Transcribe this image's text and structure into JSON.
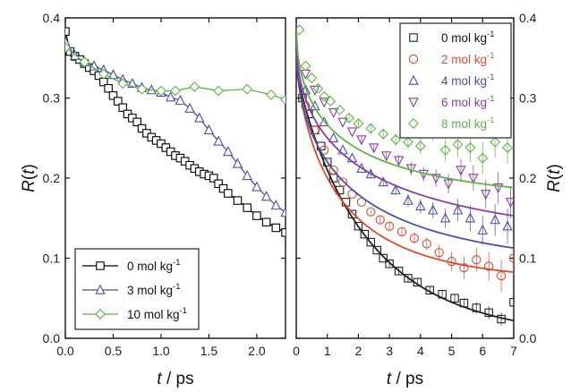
{
  "chart_data": [
    {
      "type": "line",
      "panel": "left",
      "xlabel_italic": "t",
      "xlabel_unit": " / ps",
      "ylabel_italic": "R",
      "ylabel_arg": "(t)",
      "xlim": [
        0,
        2.3
      ],
      "ylim": [
        0,
        0.4
      ],
      "xticks": [
        "0.0",
        "0.5",
        "1.0",
        "1.5",
        "2.0"
      ],
      "xtick_values": [
        0,
        0.5,
        1.0,
        1.5,
        2.0
      ],
      "yticks": [
        "0.0",
        "0.1",
        "0.2",
        "0.3",
        "0.4"
      ],
      "ytick_values": [
        0,
        0.1,
        0.2,
        0.3,
        0.4
      ],
      "legend_position": "bottom-left",
      "series": [
        {
          "name": "0 mol kg",
          "name_sup": "-1",
          "color": "#000000",
          "marker": "square",
          "x": [
            0.0,
            0.05,
            0.1,
            0.15,
            0.2,
            0.25,
            0.3,
            0.35,
            0.4,
            0.45,
            0.5,
            0.55,
            0.6,
            0.65,
            0.7,
            0.75,
            0.8,
            0.85,
            0.9,
            0.95,
            1.0,
            1.05,
            1.1,
            1.15,
            1.2,
            1.25,
            1.3,
            1.35,
            1.4,
            1.45,
            1.5,
            1.55,
            1.6,
            1.65,
            1.7,
            1.8,
            1.9,
            2.0,
            2.1,
            2.2,
            2.3
          ],
          "y": [
            0.383,
            0.358,
            0.352,
            0.348,
            0.343,
            0.338,
            0.334,
            0.328,
            0.32,
            0.312,
            0.303,
            0.296,
            0.288,
            0.28,
            0.275,
            0.27,
            0.262,
            0.256,
            0.251,
            0.247,
            0.243,
            0.238,
            0.233,
            0.228,
            0.225,
            0.221,
            0.216,
            0.212,
            0.208,
            0.205,
            0.203,
            0.2,
            0.193,
            0.187,
            0.181,
            0.172,
            0.163,
            0.153,
            0.145,
            0.138,
            0.132
          ]
        },
        {
          "name": "3 mol kg",
          "name_sup": "-1",
          "color": "#4a4fa8",
          "marker": "triangle-up",
          "x": [
            0.0,
            0.1,
            0.2,
            0.3,
            0.4,
            0.5,
            0.6,
            0.7,
            0.8,
            0.9,
            1.0,
            1.1,
            1.2,
            1.3,
            1.4,
            1.5,
            1.6,
            1.7,
            1.8,
            1.9,
            2.0,
            2.1,
            2.2,
            2.3
          ],
          "y": [
            0.37,
            0.353,
            0.345,
            0.34,
            0.335,
            0.329,
            0.323,
            0.318,
            0.313,
            0.31,
            0.307,
            0.301,
            0.297,
            0.287,
            0.275,
            0.26,
            0.246,
            0.233,
            0.218,
            0.203,
            0.189,
            0.177,
            0.166,
            0.157
          ]
        },
        {
          "name": "10 mol kg",
          "name_sup": "-1",
          "color": "#5db543",
          "marker": "diamond",
          "x": [
            0.0,
            0.2,
            0.4,
            0.6,
            0.8,
            1.0,
            1.15,
            1.35,
            1.6,
            1.9,
            2.15,
            2.3
          ],
          "y": [
            0.363,
            0.345,
            0.33,
            0.318,
            0.311,
            0.309,
            0.309,
            0.314,
            0.309,
            0.311,
            0.304,
            0.298
          ]
        }
      ]
    },
    {
      "type": "scatter",
      "panel": "right",
      "xlabel_italic": "t",
      "xlabel_unit": " / ps",
      "ylabel_italic": "R",
      "ylabel_arg": "(t)",
      "xlim": [
        0,
        7
      ],
      "ylim": [
        0,
        0.4
      ],
      "xticks": [
        "0",
        "1",
        "2",
        "3",
        "4",
        "5",
        "6",
        "7"
      ],
      "xtick_values": [
        0,
        1,
        2,
        3,
        4,
        5,
        6,
        7
      ],
      "yticks": [
        "0.0",
        "0.1",
        "0.2",
        "0.3",
        "0.4"
      ],
      "ytick_values": [
        0,
        0.1,
        0.2,
        0.3,
        0.4
      ],
      "legend_position": "top-right",
      "fit_model": "stretched-exponential",
      "series": [
        {
          "name": "0 mol kg",
          "name_sup": "-1",
          "color": "#222222",
          "marker": "square",
          "fit": {
            "r0": 0.337,
            "rinf": 0.0,
            "tau": 2.3,
            "beta": 0.9
          },
          "points": [
            [
              0.2,
              0.3,
              0
            ],
            [
              0.4,
              0.28,
              0
            ],
            [
              0.6,
              0.26,
              0
            ],
            [
              0.8,
              0.24,
              0
            ],
            [
              1.0,
              0.22,
              0
            ],
            [
              1.2,
              0.2,
              0
            ],
            [
              1.4,
              0.185,
              0
            ],
            [
              1.6,
              0.17,
              0
            ],
            [
              1.8,
              0.155,
              0
            ],
            [
              2.0,
              0.14,
              0
            ],
            [
              2.2,
              0.13,
              0
            ],
            [
              2.4,
              0.12,
              0
            ],
            [
              2.6,
              0.11,
              0
            ],
            [
              2.8,
              0.1,
              0
            ],
            [
              3.0,
              0.093,
              0.003
            ],
            [
              3.3,
              0.084,
              0.004
            ],
            [
              3.6,
              0.075,
              0.004
            ],
            [
              3.9,
              0.07,
              0.005
            ],
            [
              4.3,
              0.06,
              0.005
            ],
            [
              4.7,
              0.055,
              0.006
            ],
            [
              5.1,
              0.05,
              0.006
            ],
            [
              5.4,
              0.044,
              0.006
            ],
            [
              5.8,
              0.038,
              0.007
            ],
            [
              6.2,
              0.032,
              0.008
            ],
            [
              6.6,
              0.024,
              0.008
            ],
            [
              7.0,
              0.045,
              0.01
            ]
          ]
        },
        {
          "name": "2 mol kg",
          "name_sup": "-1",
          "color": "#e04b2f",
          "marker": "circle",
          "fit": {
            "r0": 0.35,
            "rinf": 0.07,
            "tau": 1.45,
            "beta": 0.72
          },
          "points": [
            [
              0.3,
              0.29,
              0
            ],
            [
              0.6,
              0.26,
              0
            ],
            [
              0.9,
              0.235,
              0
            ],
            [
              1.2,
              0.21,
              0
            ],
            [
              1.5,
              0.195,
              0
            ],
            [
              1.8,
              0.18,
              0
            ],
            [
              2.1,
              0.17,
              0
            ],
            [
              2.4,
              0.158,
              0.003
            ],
            [
              2.7,
              0.148,
              0.004
            ],
            [
              3.0,
              0.14,
              0.005
            ],
            [
              3.4,
              0.133,
              0.006
            ],
            [
              3.8,
              0.125,
              0.007
            ],
            [
              4.2,
              0.118,
              0.008
            ],
            [
              4.6,
              0.107,
              0.01
            ],
            [
              5.0,
              0.096,
              0.012
            ],
            [
              5.4,
              0.088,
              0.014
            ],
            [
              5.8,
              0.098,
              0.015
            ],
            [
              6.2,
              0.09,
              0.018
            ],
            [
              6.6,
              0.078,
              0.02
            ],
            [
              7.0,
              0.1,
              0.02
            ]
          ]
        },
        {
          "name": "4 mol kg",
          "name_sup": "-1",
          "color": "#4a4fa8",
          "marker": "triangle-up",
          "fit": {
            "r0": 0.355,
            "rinf": 0.082,
            "tau": 1.9,
            "beta": 0.6
          },
          "points": [
            [
              0.3,
              0.31,
              0
            ],
            [
              0.6,
              0.29,
              0
            ],
            [
              0.9,
              0.27,
              0
            ],
            [
              1.2,
              0.25,
              0
            ],
            [
              1.5,
              0.235,
              0
            ],
            [
              1.8,
              0.225,
              0
            ],
            [
              2.1,
              0.212,
              0
            ],
            [
              2.4,
              0.205,
              0.004
            ],
            [
              2.8,
              0.195,
              0.005
            ],
            [
              3.2,
              0.185,
              0.006
            ],
            [
              3.6,
              0.172,
              0.008
            ],
            [
              4.0,
              0.165,
              0.009
            ],
            [
              4.4,
              0.16,
              0.01
            ],
            [
              4.8,
              0.15,
              0.012
            ],
            [
              5.2,
              0.16,
              0.014
            ],
            [
              5.6,
              0.15,
              0.016
            ],
            [
              6.0,
              0.135,
              0.018
            ],
            [
              6.4,
              0.148,
              0.02
            ],
            [
              6.8,
              0.14,
              0.022
            ]
          ]
        },
        {
          "name": "6 mol kg",
          "name_sup": "-1",
          "color": "#8b3fa3",
          "marker": "triangle-down",
          "fit": {
            "r0": 0.37,
            "rinf": 0.11,
            "tau": 2.4,
            "beta": 0.55
          },
          "points": [
            [
              0.3,
              0.33,
              0
            ],
            [
              0.6,
              0.31,
              0
            ],
            [
              0.9,
              0.295,
              0
            ],
            [
              1.2,
              0.282,
              0
            ],
            [
              1.5,
              0.27,
              0
            ],
            [
              1.8,
              0.258,
              0
            ],
            [
              2.1,
              0.248,
              0.004
            ],
            [
              2.5,
              0.238,
              0.005
            ],
            [
              2.9,
              0.228,
              0.006
            ],
            [
              3.3,
              0.222,
              0.007
            ],
            [
              3.7,
              0.212,
              0.008
            ],
            [
              4.1,
              0.205,
              0.009
            ],
            [
              4.5,
              0.2,
              0.011
            ],
            [
              4.9,
              0.193,
              0.012
            ],
            [
              5.3,
              0.21,
              0.014
            ],
            [
              5.7,
              0.2,
              0.016
            ],
            [
              6.1,
              0.18,
              0.018
            ],
            [
              6.5,
              0.188,
              0.02
            ],
            [
              6.9,
              0.17,
              0.02
            ]
          ]
        },
        {
          "name": "8 mol kg",
          "name_sup": "-1",
          "color": "#5db543",
          "marker": "diamond",
          "fit": {
            "r0": 0.385,
            "rinf": 0.165,
            "tau": 1.6,
            "beta": 0.55
          },
          "points": [
            [
              0.1,
              0.385,
              0
            ],
            [
              0.3,
              0.34,
              0
            ],
            [
              0.5,
              0.325,
              0
            ],
            [
              0.7,
              0.312,
              0
            ],
            [
              0.9,
              0.302,
              0
            ],
            [
              1.1,
              0.296,
              0
            ],
            [
              1.4,
              0.285,
              0
            ],
            [
              1.7,
              0.275,
              0.004
            ],
            [
              2.0,
              0.268,
              0.005
            ],
            [
              2.4,
              0.262,
              0.006
            ],
            [
              2.8,
              0.255,
              0.007
            ],
            [
              3.2,
              0.248,
              0.008
            ],
            [
              3.6,
              0.245,
              0.009
            ],
            [
              4.0,
              0.24,
              0.01
            ],
            [
              4.4,
              0.258,
              0.012
            ],
            [
              4.8,
              0.235,
              0.014
            ],
            [
              5.2,
              0.242,
              0.016
            ],
            [
              5.6,
              0.238,
              0.018
            ],
            [
              6.0,
              0.225,
              0.02
            ],
            [
              6.4,
              0.245,
              0.02
            ],
            [
              6.8,
              0.238,
              0.02
            ]
          ]
        }
      ]
    }
  ]
}
